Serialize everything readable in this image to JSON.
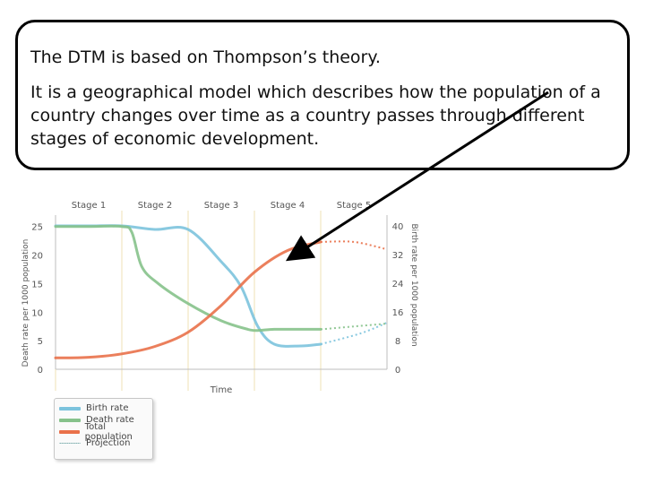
{
  "callout": {
    "line1": "The DTM is based on Thompson’s theory.",
    "line2": "It is a geographical model which describes how the population of a country changes over time as a country passes through different stages of economic development."
  },
  "chart_data": {
    "type": "line",
    "stages": [
      "Stage 1",
      "Stage 2",
      "Stage 3",
      "Stage 4",
      "Stage 5"
    ],
    "xlabel": "Time",
    "ylabel_left": "Death rate per 1000 population",
    "ylabel_right": "Birth rate per 1000 population",
    "y_left_ticks": [
      0,
      5,
      10,
      15,
      20,
      25
    ],
    "y_right_ticks": [
      0,
      8,
      16,
      24,
      32,
      40
    ],
    "y_left_range": [
      0,
      27
    ],
    "y_right_range": [
      0,
      43
    ],
    "x_range": [
      0,
      5
    ],
    "colors": {
      "birth": "#7cc3dd",
      "death": "#86c28b",
      "population": "#e9714a",
      "grid": "#efe1b6",
      "axis": "#bdbdbd"
    },
    "series": [
      {
        "name": "Birth rate",
        "axis": "right",
        "points": [
          [
            0,
            40
          ],
          [
            0.5,
            40
          ],
          [
            1,
            40
          ],
          [
            1.5,
            39
          ],
          [
            2,
            39
          ],
          [
            2.5,
            30
          ],
          [
            2.8,
            23
          ],
          [
            3.05,
            12
          ],
          [
            3.3,
            7
          ],
          [
            3.7,
            6.5
          ],
          [
            4,
            7
          ],
          [
            4.6,
            10
          ],
          [
            5,
            13
          ]
        ]
      },
      {
        "name": "Death rate",
        "axis": "left",
        "points": [
          [
            0,
            25
          ],
          [
            0.5,
            25
          ],
          [
            1,
            25
          ],
          [
            1.15,
            24
          ],
          [
            1.3,
            18
          ],
          [
            1.55,
            15
          ],
          [
            2,
            11.5
          ],
          [
            2.5,
            8.5
          ],
          [
            2.9,
            7
          ],
          [
            3.05,
            6.8
          ],
          [
            3.3,
            7
          ],
          [
            3.7,
            7
          ],
          [
            4,
            7
          ],
          [
            4.5,
            7.5
          ],
          [
            5,
            8
          ]
        ]
      },
      {
        "name": "Total population",
        "axis": "left",
        "points": [
          [
            0,
            2
          ],
          [
            0.5,
            2.1
          ],
          [
            1,
            2.7
          ],
          [
            1.5,
            4
          ],
          [
            2,
            6.5
          ],
          [
            2.5,
            11.2
          ],
          [
            3,
            17
          ],
          [
            3.5,
            20.8
          ],
          [
            4,
            22.3
          ],
          [
            4.5,
            22.3
          ],
          [
            5,
            21
          ]
        ]
      }
    ],
    "projection_start_x": 4.0,
    "legend": [
      "Birth rate",
      "Death rate",
      "Total population",
      "Projection"
    ]
  }
}
